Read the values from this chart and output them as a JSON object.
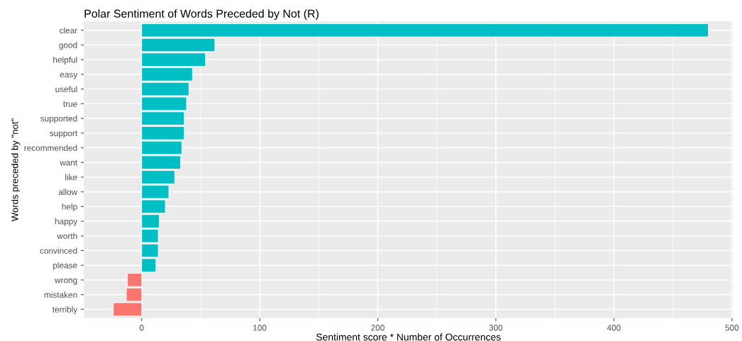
{
  "chart_data": {
    "type": "bar",
    "orientation": "horizontal",
    "title": "Polar Sentiment of Words Preceded by Not (R)",
    "xlabel": "Sentiment score * Number of Occurrences",
    "ylabel": "Words preceded by \"not\"",
    "categories": [
      "clear",
      "good",
      "helpful",
      "easy",
      "useful",
      "true",
      "supported",
      "support",
      "recommended",
      "want",
      "like",
      "allow",
      "help",
      "happy",
      "worth",
      "convinced",
      "please",
      "wrong",
      "mistaken",
      "terribly"
    ],
    "values": [
      480,
      62,
      54,
      43,
      40,
      38,
      36,
      36,
      34,
      33,
      28,
      23,
      20,
      15,
      14,
      14,
      12,
      -12,
      -13,
      -24
    ],
    "colors": [
      "#00bfc4",
      "#00bfc4",
      "#00bfc4",
      "#00bfc4",
      "#00bfc4",
      "#00bfc4",
      "#00bfc4",
      "#00bfc4",
      "#00bfc4",
      "#00bfc4",
      "#00bfc4",
      "#00bfc4",
      "#00bfc4",
      "#00bfc4",
      "#00bfc4",
      "#00bfc4",
      "#00bfc4",
      "#f8766d",
      "#f8766d",
      "#f8766d"
    ],
    "xlim": [
      -49,
      501
    ],
    "xticks": [
      0,
      100,
      200,
      300,
      400,
      500
    ],
    "grid": true,
    "legend": false
  }
}
